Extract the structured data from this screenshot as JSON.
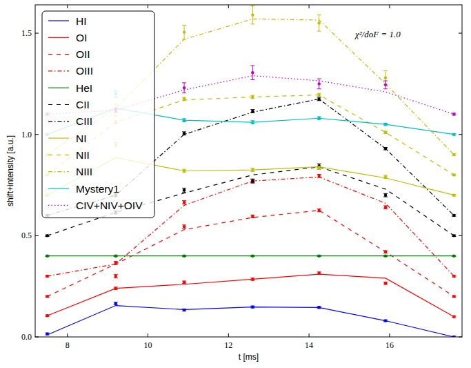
{
  "chart_data": {
    "type": "line",
    "x_label": "t [ms]",
    "y_label": "shift+intensity [a.u.]",
    "annotation": "χ²/doF = 1.0",
    "x": [
      7.5,
      9.2,
      10.9,
      12.6,
      14.25,
      15.9,
      17.6
    ],
    "xlim": [
      7.2,
      17.8
    ],
    "ylim": [
      0,
      1.64
    ],
    "xticks": [
      8,
      10,
      12,
      14,
      16
    ],
    "yticks": [
      {
        "value": 0,
        "label": "0.0"
      },
      0.5,
      {
        "value": 1,
        "label": "1.0"
      },
      1.5
    ],
    "legend": "upper left",
    "grid": false,
    "marker": "o",
    "series": [
      {
        "name": "HI",
        "color": "#0000ff",
        "line_style": "solid",
        "values": [
          0.01,
          0.155,
          0.135,
          0.148,
          0.145,
          0.08,
          0.0
        ],
        "points": [
          0.015,
          0.165,
          0.133,
          0.148,
          0.146,
          0.08,
          0.0
        ],
        "errors": [
          0.005,
          0.006,
          0.005,
          0.005,
          0.005,
          0.004,
          0.004
        ]
      },
      {
        "name": "OI",
        "color": "#ff0000",
        "line_style": "solid",
        "values": [
          0.105,
          0.24,
          0.26,
          0.285,
          0.31,
          0.29,
          0.1
        ],
        "points": [
          0.105,
          0.24,
          0.27,
          0.285,
          0.315,
          0.265,
          0.1
        ],
        "errors": [
          0.004,
          0.006,
          0.006,
          0.006,
          0.006,
          0.006,
          0.004
        ]
      },
      {
        "name": "OII",
        "color": "#ff0000",
        "line_style": "dashed",
        "values": [
          0.2,
          0.36,
          0.53,
          0.59,
          0.625,
          0.42,
          0.2
        ],
        "points": [
          0.2,
          0.3,
          0.545,
          0.595,
          0.625,
          0.42,
          0.2
        ],
        "errors": [
          0.004,
          0.008,
          0.008,
          0.007,
          0.007,
          0.006,
          0.004
        ]
      },
      {
        "name": "OIII",
        "color": "#ff0000",
        "line_style": "dashdot",
        "values": [
          0.3,
          0.36,
          0.65,
          0.77,
          0.79,
          0.66,
          0.3
        ],
        "points": [
          0.3,
          0.365,
          0.665,
          0.77,
          0.795,
          0.64,
          0.3
        ],
        "errors": [
          0.004,
          0.008,
          0.008,
          0.008,
          0.008,
          0.008,
          0.004
        ]
      },
      {
        "name": "HeI",
        "color": "#008000",
        "line_style": "solid",
        "values": [
          0.4,
          0.4,
          0.4,
          0.4,
          0.4,
          0.4,
          0.4
        ],
        "points": [
          0.4,
          0.4,
          0.4,
          0.4,
          0.4,
          0.4,
          0.4
        ],
        "errors": [
          0.003,
          0.003,
          0.003,
          0.003,
          0.003,
          0.003,
          0.003
        ]
      },
      {
        "name": "CII",
        "color": "#000000",
        "line_style": "dashed",
        "values": [
          0.5,
          0.615,
          0.71,
          0.8,
          0.84,
          0.73,
          0.5
        ],
        "points": [
          0.5,
          0.615,
          0.725,
          0.77,
          0.845,
          0.7,
          0.5
        ],
        "errors": [
          0.004,
          0.008,
          0.01,
          0.01,
          0.01,
          0.008,
          0.004
        ]
      },
      {
        "name": "CIII",
        "color": "#000000",
        "line_style": "dashdot",
        "values": [
          0.6,
          0.7,
          1.0,
          1.11,
          1.175,
          0.93,
          0.6
        ],
        "points": [
          0.6,
          0.7,
          1.005,
          1.115,
          1.175,
          0.93,
          0.6
        ],
        "errors": [
          0.004,
          0.008,
          0.008,
          0.008,
          0.008,
          0.006,
          0.004
        ]
      },
      {
        "name": "NI",
        "color": "#bfbf00",
        "line_style": "solid",
        "values": [
          0.7,
          0.885,
          0.82,
          0.825,
          0.84,
          0.785,
          0.7
        ],
        "points": [
          0.7,
          0.95,
          0.82,
          0.825,
          0.835,
          0.79,
          0.7
        ],
        "errors": [
          0.004,
          0.01,
          0.008,
          0.008,
          0.008,
          0.008,
          0.004
        ]
      },
      {
        "name": "NII",
        "color": "#bfbf00",
        "line_style": "dashed",
        "values": [
          0.8,
          1.06,
          1.17,
          1.185,
          1.195,
          1.01,
          0.8
        ],
        "points": [
          0.8,
          1.06,
          1.175,
          1.185,
          1.195,
          1.01,
          0.8
        ],
        "errors": [
          0.004,
          0.008,
          0.008,
          0.008,
          0.008,
          0.006,
          0.004
        ]
      },
      {
        "name": "NIII",
        "color": "#bfbf00",
        "line_style": "dashdot",
        "values": [
          0.9,
          1.13,
          1.47,
          1.57,
          1.565,
          1.25,
          0.9
        ],
        "points": [
          0.9,
          1.12,
          1.505,
          1.59,
          1.55,
          1.28,
          0.9
        ],
        "errors": [
          0.005,
          0.03,
          0.035,
          0.045,
          0.04,
          0.035,
          0.005
        ]
      },
      {
        "name": "Mystery1",
        "color": "#00bfbf",
        "line_style": "solid",
        "values": [
          1.0,
          1.13,
          1.07,
          1.06,
          1.08,
          1.05,
          1.0
        ],
        "points": [
          1.0,
          1.2,
          1.07,
          1.06,
          1.08,
          1.05,
          1.0
        ],
        "errors": [
          0.004,
          0.015,
          0.008,
          0.008,
          0.008,
          0.006,
          0.004
        ]
      },
      {
        "name": "CIV+NIV+OIV",
        "color": "#bf00bf",
        "line_style": "dotted",
        "values": [
          1.1,
          1.12,
          1.22,
          1.29,
          1.265,
          1.21,
          1.1
        ],
        "points": [
          1.1,
          1.12,
          1.23,
          1.305,
          1.25,
          1.245,
          1.1
        ],
        "errors": [
          0.005,
          0.01,
          0.025,
          0.035,
          0.025,
          0.02,
          0.005
        ]
      }
    ]
  }
}
